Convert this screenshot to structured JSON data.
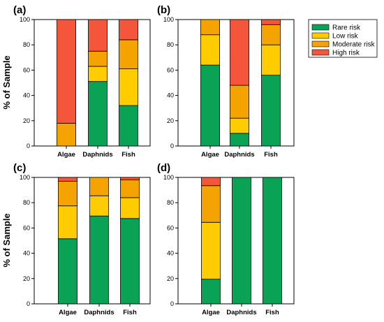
{
  "colors": {
    "rare": "#0aa355",
    "low": "#ffcc00",
    "moderate": "#f5a300",
    "high": "#f5553a"
  },
  "legend": {
    "entries": [
      "Rare risk",
      "Low risk",
      "Moderate risk",
      "High risk"
    ]
  },
  "y_axis_label": "% of Sample",
  "chart_data": [
    {
      "type": "bar",
      "panel_label": "(a)",
      "stacked": true,
      "categories": [
        "Algae",
        "Daphnids",
        "Fish"
      ],
      "ylim": [
        0,
        100
      ],
      "yticks": [
        0,
        20,
        40,
        60,
        80,
        100
      ],
      "ylabel": "% of Sample",
      "series": [
        {
          "name": "Rare risk",
          "values": [
            0,
            51,
            32
          ]
        },
        {
          "name": "Low risk",
          "values": [
            0,
            12,
            29
          ]
        },
        {
          "name": "Moderate risk",
          "values": [
            18,
            12,
            23
          ]
        },
        {
          "name": "High risk",
          "values": [
            82,
            25,
            16
          ]
        }
      ]
    },
    {
      "type": "bar",
      "panel_label": "(b)",
      "stacked": true,
      "categories": [
        "Algae",
        "Daphnids",
        "Fish"
      ],
      "ylim": [
        0,
        100
      ],
      "yticks": [
        0,
        20,
        40,
        60,
        80,
        100
      ],
      "ylabel": "",
      "legend": "top-right",
      "series": [
        {
          "name": "Rare risk",
          "values": [
            64,
            10,
            56
          ]
        },
        {
          "name": "Low risk",
          "values": [
            24,
            12,
            24
          ]
        },
        {
          "name": "Moderate risk",
          "values": [
            12,
            26,
            16
          ]
        },
        {
          "name": "High risk",
          "values": [
            0,
            52,
            4
          ]
        }
      ]
    },
    {
      "type": "bar",
      "panel_label": "(c)",
      "stacked": true,
      "categories": [
        "Algae",
        "Daphnids",
        "Fish"
      ],
      "ylim": [
        0,
        100
      ],
      "yticks": [
        0,
        20,
        40,
        60,
        80,
        100
      ],
      "ylabel": "% of Sample",
      "series": [
        {
          "name": "Rare risk",
          "values": [
            51.5,
            69.5,
            67.5
          ]
        },
        {
          "name": "Low risk",
          "values": [
            26,
            16,
            16.5
          ]
        },
        {
          "name": "Moderate risk",
          "values": [
            19.5,
            14.5,
            14
          ]
        },
        {
          "name": "High risk",
          "values": [
            3,
            0,
            2
          ]
        }
      ]
    },
    {
      "type": "bar",
      "panel_label": "(d)",
      "stacked": true,
      "categories": [
        "Algae",
        "Daphnids",
        "Fish"
      ],
      "ylim": [
        0,
        100
      ],
      "yticks": [
        0,
        20,
        40,
        60,
        80,
        100
      ],
      "ylabel": "",
      "series": [
        {
          "name": "Rare risk",
          "values": [
            19.5,
            100,
            100
          ]
        },
        {
          "name": "Low risk",
          "values": [
            45,
            0,
            0
          ]
        },
        {
          "name": "Moderate risk",
          "values": [
            29,
            0,
            0
          ]
        },
        {
          "name": "High risk",
          "values": [
            6.5,
            0,
            0
          ]
        }
      ]
    }
  ]
}
